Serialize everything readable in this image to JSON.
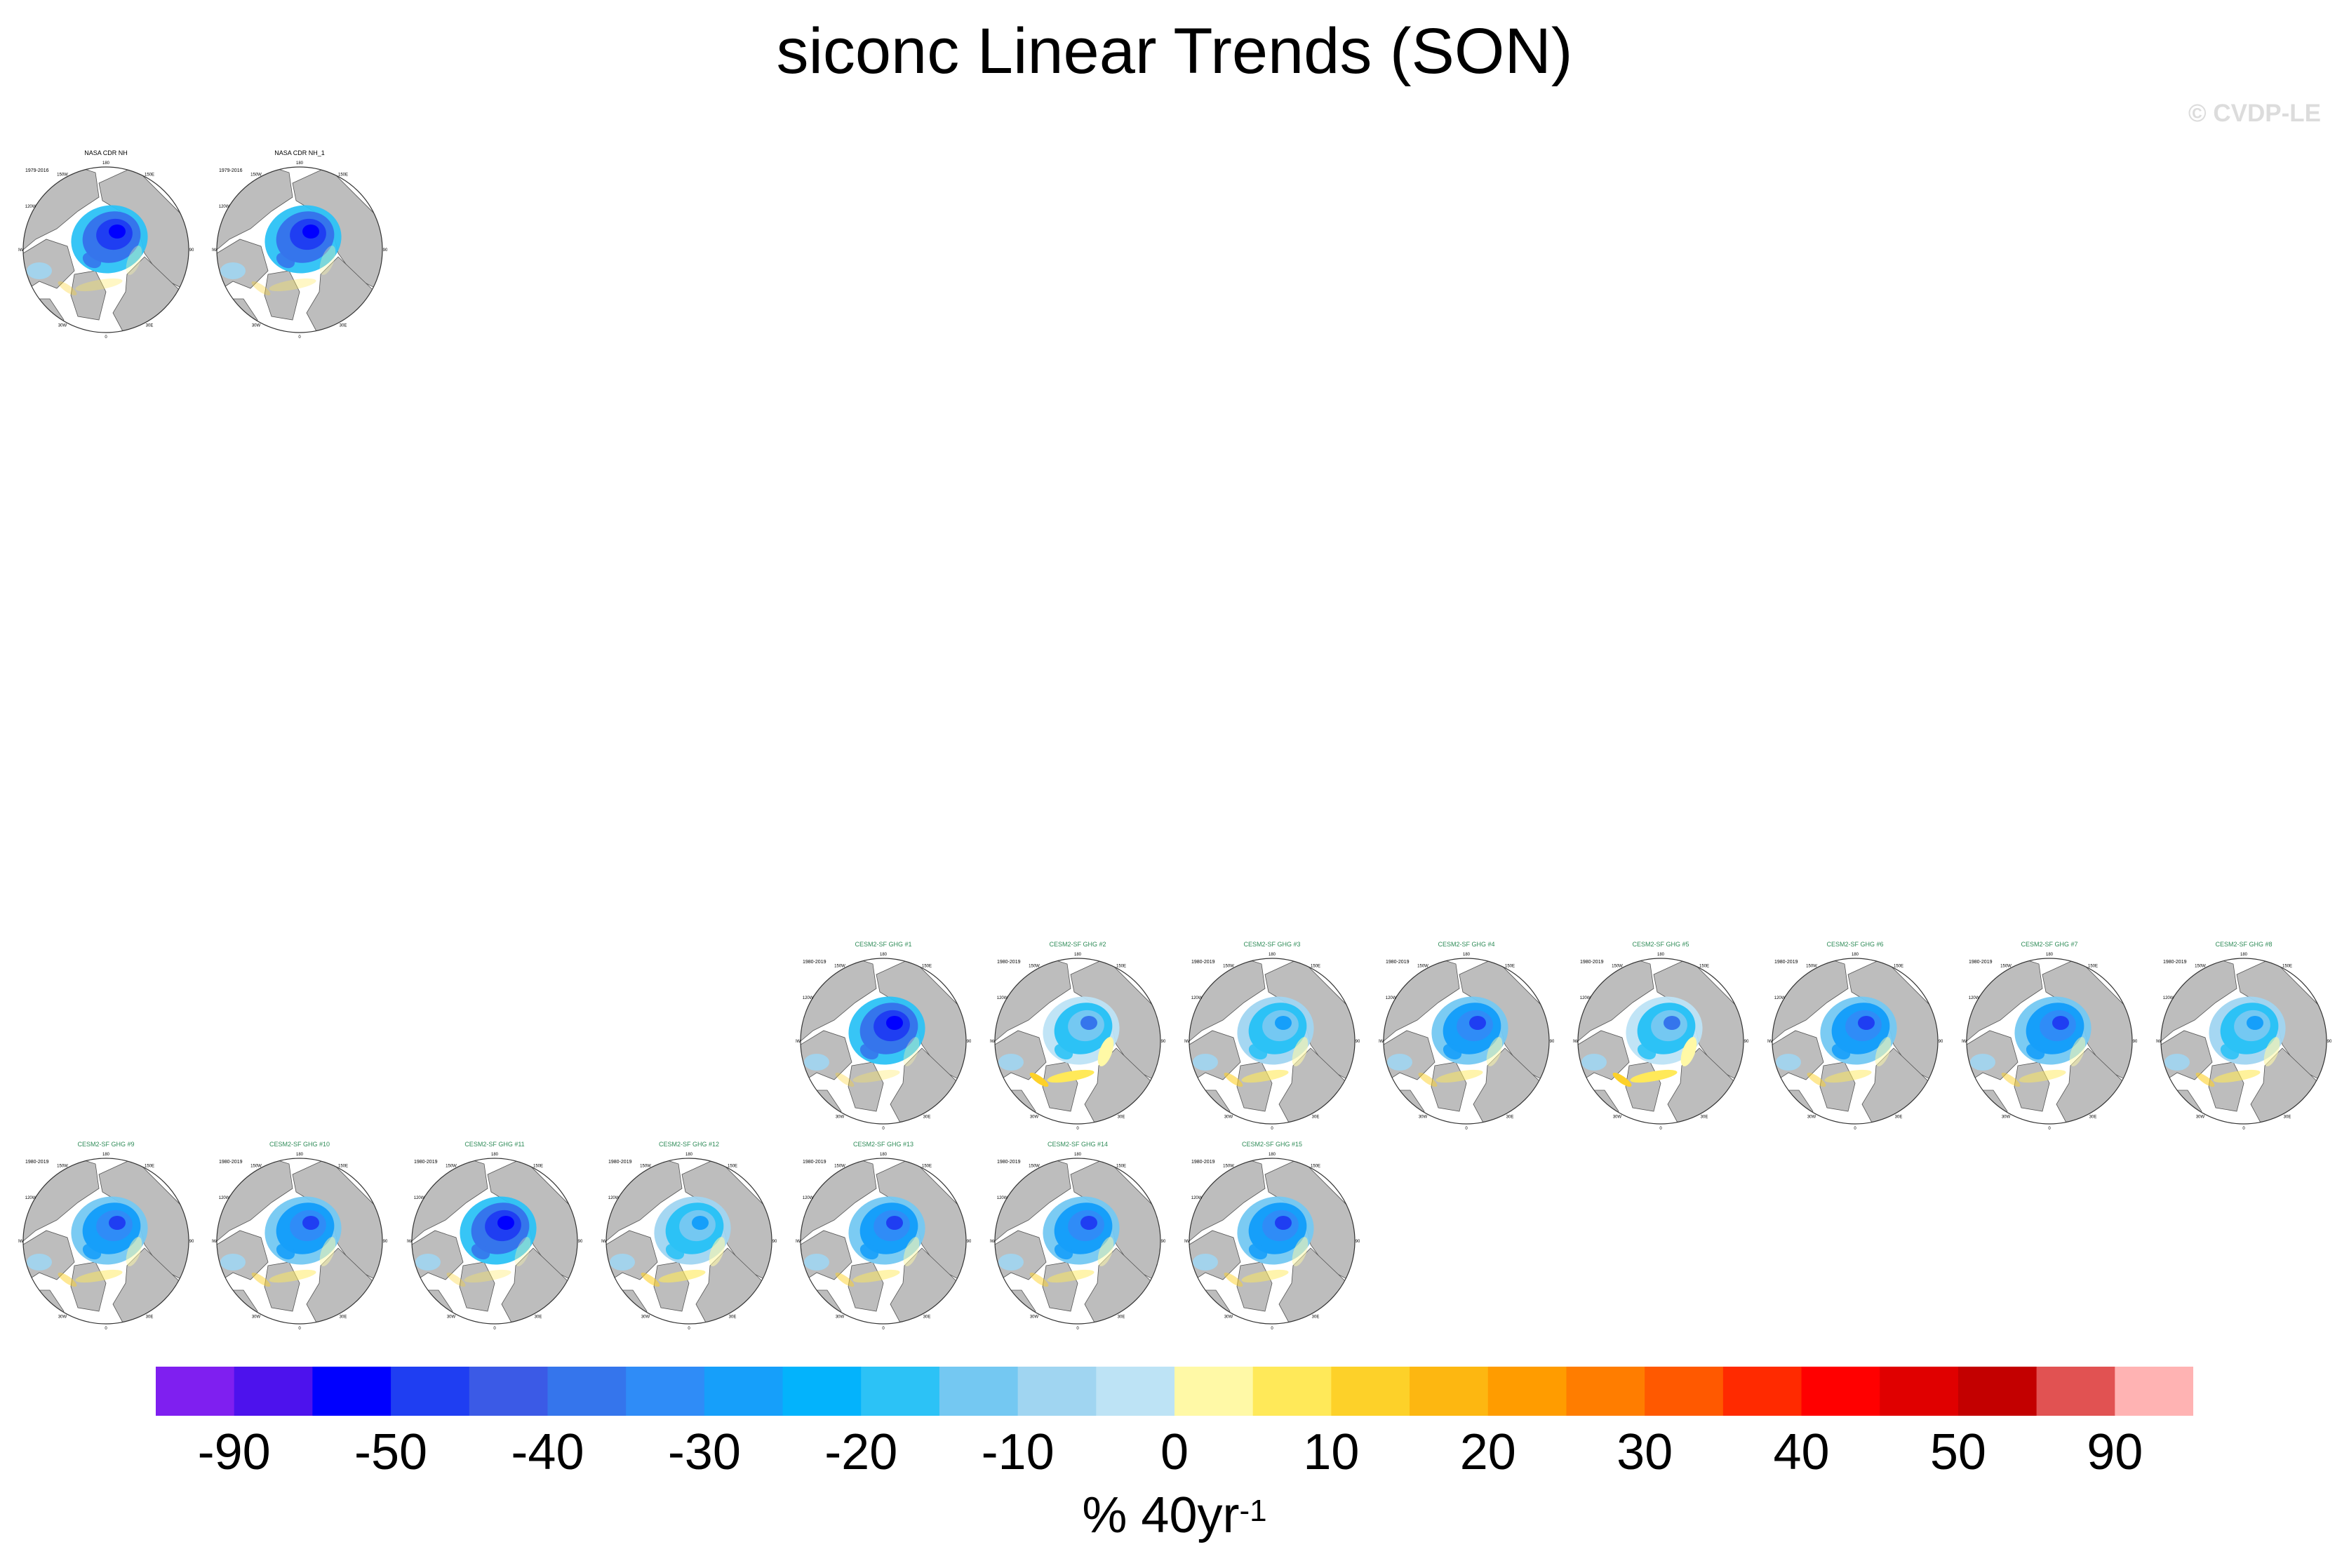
{
  "chart_data": {
    "type": "heatmap",
    "title": "siconc Linear Trends (SON)",
    "watermark": "© CVDP-LE",
    "colorbar": {
      "unit": "% 40yr",
      "unit_exponent": "-1",
      "tick_labels": [
        "-90",
        "-50",
        "-40",
        "-30",
        "-20",
        "-10",
        "0",
        "10",
        "20",
        "30",
        "40",
        "50",
        "90"
      ],
      "colors": [
        "#7f1ff0",
        "#4d12ed",
        "#0000ff",
        "#1f3ef2",
        "#3b5ae6",
        "#3575ec",
        "#2f8cf7",
        "#169ffa",
        "#03b3fc",
        "#2cc2f6",
        "#74c8f2",
        "#a0d5f1",
        "#bde3f5",
        "#fff9a6",
        "#ffe959",
        "#fdd129",
        "#fdb711",
        "#ff9c00",
        "#ff7d00",
        "#ff5900",
        "#ff2a00",
        "#ff0000",
        "#e00000",
        "#c30000",
        "#e15252",
        "#ffb3b3"
      ]
    },
    "panels": [
      {
        "title": "NASA CDR NH",
        "period": "1979-2016",
        "kind": "obs",
        "trend": "strong-neg"
      },
      {
        "title": "NASA CDR NH_1",
        "period": "1979-2016",
        "kind": "obs",
        "trend": "strong-neg"
      },
      {
        "title": "CESM2-SF GHG #1",
        "period": "1980-2019",
        "kind": "model",
        "trend": "strong-neg"
      },
      {
        "title": "CESM2-SF GHG #2",
        "period": "1980-2019",
        "kind": "model",
        "trend": "mixed"
      },
      {
        "title": "CESM2-SF GHG #3",
        "period": "1980-2019",
        "kind": "model",
        "trend": "weak-neg"
      },
      {
        "title": "CESM2-SF GHG #4",
        "period": "1980-2019",
        "kind": "model",
        "trend": "mod-neg"
      },
      {
        "title": "CESM2-SF GHG #5",
        "period": "1980-2019",
        "kind": "model",
        "trend": "mixed"
      },
      {
        "title": "CESM2-SF GHG #6",
        "period": "1980-2019",
        "kind": "model",
        "trend": "mod-neg"
      },
      {
        "title": "CESM2-SF GHG #7",
        "period": "1980-2019",
        "kind": "model",
        "trend": "mod-neg"
      },
      {
        "title": "CESM2-SF GHG #8",
        "period": "1980-2019",
        "kind": "model",
        "trend": "weak-neg"
      },
      {
        "title": "CESM2-SF GHG #9",
        "period": "1980-2019",
        "kind": "model",
        "trend": "mod-neg"
      },
      {
        "title": "CESM2-SF GHG #10",
        "period": "1980-2019",
        "kind": "model",
        "trend": "mod-neg"
      },
      {
        "title": "CESM2-SF GHG #11",
        "period": "1980-2019",
        "kind": "model",
        "trend": "strong-neg"
      },
      {
        "title": "CESM2-SF GHG #12",
        "period": "1980-2019",
        "kind": "model",
        "trend": "weak-neg"
      },
      {
        "title": "CESM2-SF GHG #13",
        "period": "1980-2019",
        "kind": "model",
        "trend": "mod-neg"
      },
      {
        "title": "CESM2-SF GHG #14",
        "period": "1980-2019",
        "kind": "model",
        "trend": "mod-neg"
      },
      {
        "title": "CESM2-SF GHG #15",
        "period": "1980-2019",
        "kind": "model",
        "trend": "mod-neg"
      }
    ]
  }
}
